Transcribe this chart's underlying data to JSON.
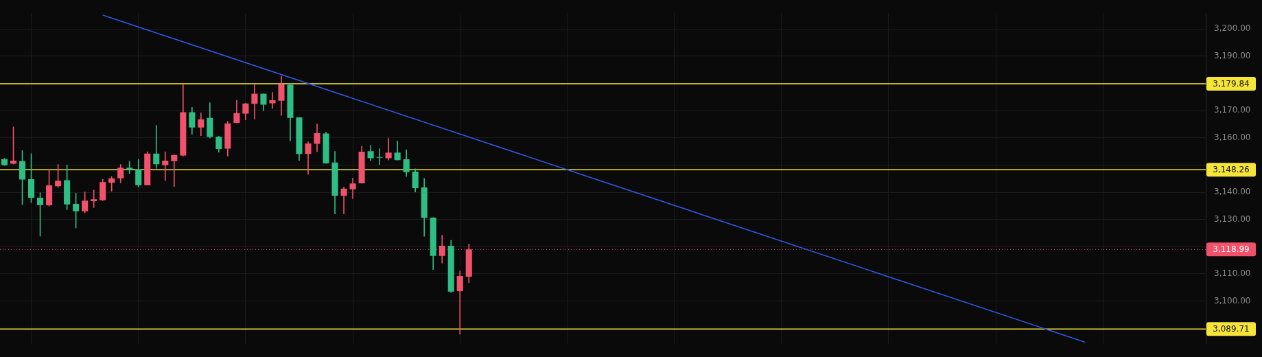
{
  "chart_data": {
    "type": "candlestick",
    "categories": [
      null,
      null,
      null,
      null,
      null,
      null,
      null,
      null,
      null,
      null,
      null,
      null,
      null,
      null,
      null,
      null,
      null,
      null,
      null,
      null,
      null,
      null,
      null,
      null,
      null,
      null,
      null,
      null,
      null,
      null,
      null,
      null,
      null,
      null,
      null,
      null,
      null,
      null,
      null,
      null,
      null,
      null,
      null,
      null,
      null,
      null,
      null,
      null,
      null,
      null,
      null,
      null,
      null,
      null,
      null,
      null,
      null,
      null,
      null,
      null,
      null,
      null,
      null,
      null,
      null,
      null,
      null,
      null,
      null,
      null,
      null,
      null,
      null,
      null,
      null,
      null,
      null,
      null,
      null,
      null,
      null,
      null,
      null,
      null,
      null,
      null,
      null,
      null,
      null,
      null,
      null,
      null,
      null,
      null,
      null,
      null,
      null,
      null,
      null,
      null,
      null,
      null,
      null,
      null,
      null,
      null,
      null,
      null,
      null,
      null,
      null,
      null,
      null,
      null,
      null,
      null,
      null,
      null,
      null,
      null,
      null,
      null,
      null,
      null,
      null,
      null,
      null,
      null,
      null,
      null,
      null,
      null,
      null,
      null,
      null
    ],
    "ohlc": [
      [
        3152.2,
        3152.5,
        3149.8,
        3150.0
      ],
      [
        3150.5,
        3164.0,
        3150.3,
        3151.6
      ],
      [
        3151.4,
        3155.3,
        3135.5,
        3144.7
      ],
      [
        3144.8,
        3154.2,
        3136.2,
        3137.9
      ],
      [
        3138.0,
        3139.8,
        3123.9,
        3135.3
      ],
      [
        3135.2,
        3148.2,
        3134.9,
        3142.5
      ],
      [
        3142.2,
        3150.2,
        3141.8,
        3144.2
      ],
      [
        3144.4,
        3150.0,
        3133.6,
        3135.5
      ],
      [
        3135.7,
        3139.6,
        3126.9,
        3133.0
      ],
      [
        3133.0,
        3140.1,
        3132.4,
        3136.9
      ],
      [
        3136.7,
        3140.8,
        3134.4,
        3137.4
      ],
      [
        3137.1,
        3144.8,
        3136.9,
        3143.7
      ],
      [
        3143.5,
        3145.8,
        3140.4,
        3145.1
      ],
      [
        3145.1,
        3150.2,
        3143.5,
        3149.0
      ],
      [
        3149.0,
        3151.4,
        3146.9,
        3148.2
      ],
      [
        3148.3,
        3152.1,
        3141.9,
        3142.6
      ],
      [
        3142.6,
        3154.9,
        3142.6,
        3154.2
      ],
      [
        3154.2,
        3164.6,
        3148.8,
        3150.3
      ],
      [
        3150.0,
        3154.9,
        3144.3,
        3151.6
      ],
      [
        3151.4,
        3153.7,
        3142.1,
        3153.7
      ],
      [
        3153.5,
        3179.7,
        3153.3,
        3169.4
      ],
      [
        3169.4,
        3171.2,
        3161.3,
        3163.8
      ],
      [
        3163.8,
        3169.1,
        3160.8,
        3166.8
      ],
      [
        3167.3,
        3172.9,
        3159.9,
        3160.3
      ],
      [
        3160.4,
        3160.6,
        3154.7,
        3155.9
      ],
      [
        3156.0,
        3166.1,
        3153.3,
        3165.3
      ],
      [
        3165.5,
        3173.8,
        3165.5,
        3169.1
      ],
      [
        3168.9,
        3172.7,
        3166.6,
        3172.6
      ],
      [
        3172.5,
        3179.7,
        3166.9,
        3176.2
      ],
      [
        3176.2,
        3176.2,
        3169.9,
        3172.2
      ],
      [
        3172.7,
        3176.7,
        3170.8,
        3173.8
      ],
      [
        3173.6,
        3182.7,
        3168.2,
        3179.6
      ],
      [
        3179.5,
        3180.0,
        3158.9,
        3167.3
      ],
      [
        3167.5,
        3167.5,
        3151.7,
        3154.1
      ],
      [
        3154.1,
        3158.5,
        3146.6,
        3157.9
      ],
      [
        3157.8,
        3165.1,
        3154.9,
        3161.7
      ],
      [
        3161.6,
        3162.1,
        3150.6,
        3150.6
      ],
      [
        3150.9,
        3155.0,
        3132.0,
        3138.7
      ],
      [
        3138.7,
        3141.9,
        3132.0,
        3141.3
      ],
      [
        3141.1,
        3145.2,
        3137.6,
        3143.2
      ],
      [
        3143.3,
        3156.9,
        3143.3,
        3154.9
      ],
      [
        3155.1,
        3157.2,
        3151.6,
        3152.5
      ],
      [
        3152.7,
        3156.0,
        3150.2,
        3152.7
      ],
      [
        3152.5,
        3159.8,
        3151.8,
        3154.6
      ],
      [
        3154.6,
        3158.8,
        3151.8,
        3151.8
      ],
      [
        3152.1,
        3155.6,
        3145.8,
        3147.4
      ],
      [
        3147.6,
        3148.6,
        3140.1,
        3141.5
      ],
      [
        3141.8,
        3145.1,
        3123.8,
        3130.6
      ],
      [
        3130.7,
        3130.7,
        3111.6,
        3116.6
      ],
      [
        3116.6,
        3124.2,
        3114.0,
        3120.3
      ],
      [
        3120.3,
        3122.3,
        3103.1,
        3103.5
      ],
      [
        3103.7,
        3111.1,
        3087.8,
        3109.2
      ],
      [
        3109.0,
        3121.0,
        3106.7,
        3119.0
      ],
      null,
      null,
      null,
      null,
      null,
      null,
      null,
      null,
      null,
      null,
      null,
      null,
      null,
      null,
      null,
      null,
      null,
      null,
      null,
      null,
      null,
      null,
      null,
      null,
      null,
      null,
      null,
      null,
      null,
      null,
      null,
      null,
      null,
      null,
      null,
      null,
      null,
      null,
      null,
      null,
      null,
      null,
      null,
      null,
      null,
      null,
      null,
      null,
      null,
      null,
      null,
      null,
      null,
      null,
      null,
      null,
      null,
      null,
      null,
      null,
      null,
      null,
      null,
      null,
      null,
      null,
      null,
      null,
      null,
      null,
      null,
      null,
      null,
      null,
      null,
      null,
      null,
      null,
      null,
      null,
      null,
      null
    ],
    "colors": [
      "#2ebd85",
      "#f0516b",
      "#2ebd85",
      "#2ebd85",
      "#2ebd85",
      "#f0516b",
      "#f0516b",
      "#2ebd85",
      "#2ebd85",
      "#f0516b",
      "#f0516b",
      "#f0516b",
      "#f0516b",
      "#f0516b",
      "#2ebd85",
      "#2ebd85",
      "#f0516b",
      "#2ebd85",
      "#f0516b",
      "#f0516b",
      "#f0516b",
      "#2ebd85",
      "#f0516b",
      "#2ebd85",
      "#2ebd85",
      "#f0516b",
      "#f0516b",
      "#f0516b",
      "#f0516b",
      "#2ebd85",
      "#f0516b",
      "#f0516b",
      "#2ebd85",
      "#2ebd85",
      "#f0516b",
      "#f0516b",
      "#2ebd85",
      "#2ebd85",
      "#f0516b",
      "#f0516b",
      "#f0516b",
      "#2ebd85",
      "#2ebd85",
      "#f0516b",
      "#2ebd85",
      "#2ebd85",
      "#2ebd85",
      "#2ebd85",
      "#2ebd85",
      "#f0516b",
      "#2ebd85",
      "#f0516b",
      "#f0516b",
      null,
      null,
      null,
      null,
      null,
      null,
      null,
      null,
      null,
      null,
      null,
      null,
      null,
      null,
      null,
      null,
      null,
      null,
      null,
      null,
      null,
      null,
      null,
      null,
      null,
      null,
      null,
      null,
      null,
      null,
      null,
      null,
      null,
      null,
      null,
      null,
      null,
      null,
      null,
      null,
      null,
      null,
      null,
      null,
      null,
      null,
      null,
      null,
      null,
      null,
      null,
      null,
      null,
      null,
      null,
      null,
      null,
      null,
      null,
      null,
      null,
      null,
      null,
      null,
      null,
      null,
      null,
      null,
      null,
      null,
      null,
      null,
      null,
      null,
      null,
      null,
      null,
      null,
      null,
      null,
      null,
      null
    ],
    "series": [
      {
        "type": "line",
        "color": "#3158e0",
        "values": [
          null,
          null,
          null,
          null,
          null,
          null,
          null,
          null,
          null,
          null,
          null,
          3205.1,
          null,
          null,
          null,
          null,
          null,
          null,
          null,
          null,
          null,
          null,
          null,
          null,
          null,
          null,
          null,
          null,
          null,
          null,
          null,
          null,
          null,
          null,
          null,
          null,
          null,
          null,
          null,
          null,
          null,
          null,
          null,
          null,
          null,
          null,
          null,
          null,
          null,
          null,
          null,
          null,
          null,
          null,
          null,
          null,
          null,
          null,
          null,
          null,
          null,
          null,
          null,
          null,
          null,
          null,
          null,
          null,
          null,
          null,
          null,
          null,
          null,
          null,
          null,
          null,
          null,
          null,
          null,
          null,
          null,
          null,
          null,
          null,
          null,
          null,
          null,
          null,
          null,
          null,
          null,
          null,
          null,
          null,
          null,
          null,
          null,
          null,
          null,
          null,
          null,
          null,
          null,
          null,
          null,
          null,
          null,
          null,
          null,
          null,
          null,
          null,
          null,
          null,
          null,
          null,
          null,
          null,
          null,
          null,
          null,
          3084.9,
          null,
          null,
          null,
          null,
          null,
          null,
          null,
          null,
          null,
          null,
          null,
          null,
          null
        ]
      }
    ],
    "ylim": [
      3084.3,
      3205.8
    ],
    "yticks": [
      {
        "value": 3100,
        "label": "3,100.00"
      },
      {
        "value": 3110,
        "label": "3,110.00"
      },
      {
        "value": 3120,
        "label": null
      },
      {
        "value": 3130,
        "label": "3,130.00"
      },
      {
        "value": 3140,
        "label": "3,140.00"
      },
      {
        "value": 3150,
        "label": null
      },
      {
        "value": 3160,
        "label": "3,160.00"
      },
      {
        "value": 3170,
        "label": "3,170.00"
      },
      {
        "value": 3180,
        "label": null
      },
      {
        "value": 3190,
        "label": "3,190.00"
      },
      {
        "value": 3200,
        "label": "3,200.00"
      }
    ],
    "grid": true,
    "tick_labels": "y",
    "ref_lines": [
      {
        "axis": "y",
        "value": 3179.84,
        "label": "3,179.84",
        "color": "#f5e43a",
        "line_style": "solid"
      },
      {
        "axis": "y",
        "value": 3148.26,
        "label": "3,148.26",
        "color": "#f5e43a",
        "line_style": "solid"
      },
      {
        "axis": "y",
        "value": 3089.71,
        "label": "3,089.71",
        "color": "#f5e43a",
        "line_style": "solid"
      },
      {
        "axis": "y",
        "value": 3118.99,
        "label": "3,118.99",
        "color": "#f0516b",
        "line_style": "dotted"
      }
    ]
  }
}
